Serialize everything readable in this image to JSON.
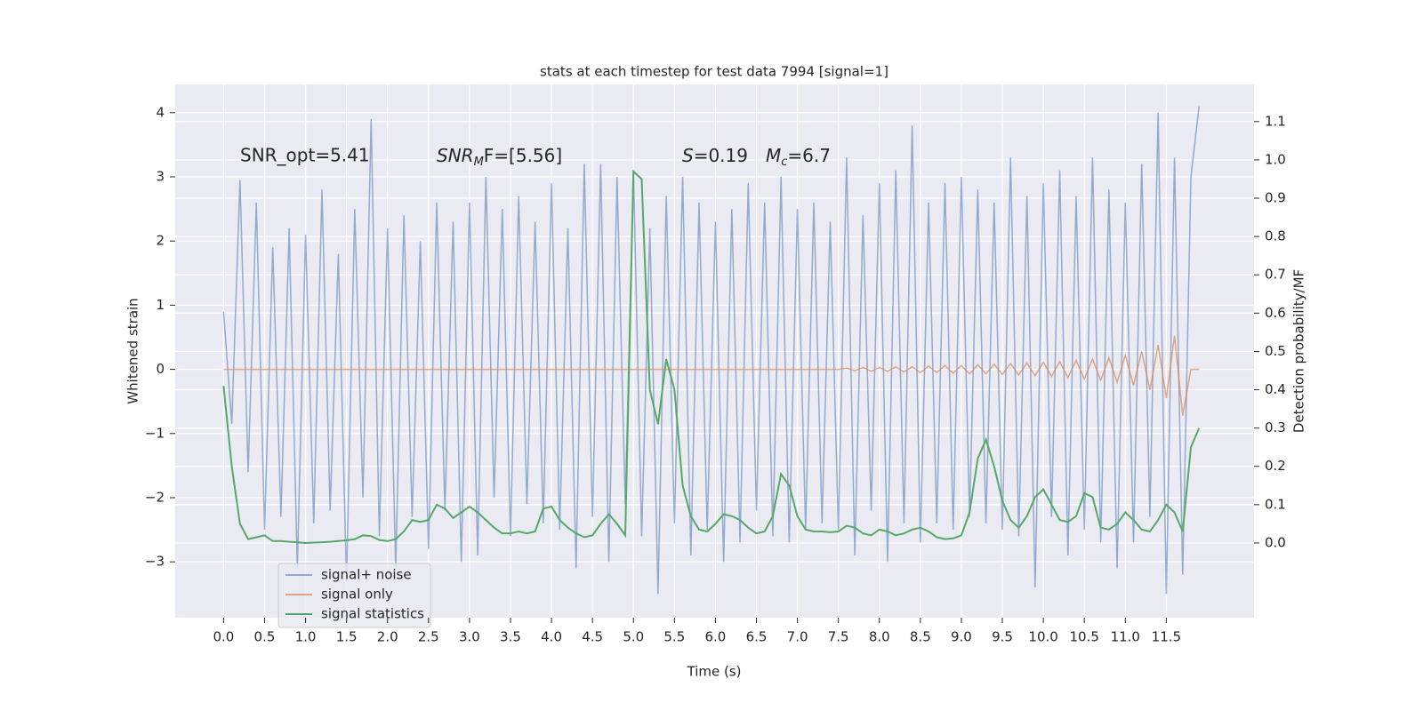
{
  "chart_data": {
    "type": "line",
    "title": "stats at each timestep for test data 7994 [signal=1]",
    "x_label": "Time (s)",
    "y_label": "Whitened strain",
    "y2_label": "Detection probability/MF",
    "annotations": {
      "snr_opt": "SNR_opt=5.41",
      "snr_mf": [
        "SNR",
        "M",
        "F=[5.56]"
      ],
      "stats": [
        "S",
        "=0.19",
        "M",
        "c",
        "=6.7"
      ]
    },
    "x": [
      0,
      0.1,
      0.2,
      0.3,
      0.4,
      0.5,
      0.6,
      0.7,
      0.8,
      0.9,
      1,
      1.1,
      1.2,
      1.3,
      1.4,
      1.5,
      1.6,
      1.7,
      1.8,
      1.9,
      2,
      2.1,
      2.2,
      2.3,
      2.4,
      2.5,
      2.6,
      2.7,
      2.8,
      2.9,
      3,
      3.1,
      3.2,
      3.3,
      3.4,
      3.5,
      3.6,
      3.7,
      3.8,
      3.9,
      4,
      4.1,
      4.2,
      4.3,
      4.4,
      4.5,
      4.6,
      4.7,
      4.8,
      4.9,
      5,
      5.1,
      5.2,
      5.3,
      5.4,
      5.5,
      5.6,
      5.7,
      5.8,
      5.9,
      6,
      6.1,
      6.2,
      6.3,
      6.4,
      6.5,
      6.6,
      6.7,
      6.8,
      6.9,
      7,
      7.1,
      7.2,
      7.3,
      7.4,
      7.5,
      7.6,
      7.7,
      7.8,
      7.9,
      8,
      8.1,
      8.2,
      8.3,
      8.4,
      8.5,
      8.6,
      8.7,
      8.8,
      8.9,
      9,
      9.1,
      9.2,
      9.3,
      9.4,
      9.5,
      9.6,
      9.7,
      9.8,
      9.9,
      10,
      10.1,
      10.2,
      10.3,
      10.4,
      10.5,
      10.6,
      10.7,
      10.8,
      10.9,
      11,
      11.1,
      11.2,
      11.3,
      11.4,
      11.5,
      11.6,
      11.7,
      11.8,
      11.9
    ],
    "series": [
      {
        "name": "signal+ noise",
        "color": "#4c72b0",
        "alpha": 0.55,
        "values": [
          0.9,
          -0.85,
          2.95,
          -1.6,
          2.6,
          -2.5,
          1.9,
          -2.3,
          2.2,
          -3.1,
          2.1,
          -2.4,
          2.8,
          -2.2,
          1.8,
          -3.3,
          2.5,
          -2.0,
          3.9,
          -2.6,
          2.2,
          -3.1,
          2.4,
          -2.3,
          2.0,
          -2.8,
          2.6,
          -2.2,
          2.3,
          -3.0,
          2.6,
          -2.9,
          3.0,
          -2.0,
          2.5,
          -2.6,
          2.7,
          -2.1,
          2.3,
          -2.4,
          2.9,
          -2.5,
          2.2,
          -3.1,
          3.2,
          -2.3,
          3.2,
          -3.0,
          3.0,
          -2.1,
          3.1,
          -2.6,
          2.2,
          -3.5,
          2.7,
          -2.4,
          3.0,
          -2.9,
          2.6,
          -2.5,
          2.3,
          -3.0,
          2.5,
          -2.7,
          2.9,
          -2.2,
          2.6,
          -2.6,
          3.0,
          -2.7,
          2.5,
          -2.5,
          2.6,
          -2.4,
          2.3,
          -2.5,
          3.3,
          -2.9,
          2.4,
          -2.2,
          2.9,
          -3.0,
          3.1,
          -2.4,
          3.8,
          -2.7,
          2.6,
          -2.4,
          2.9,
          -2.5,
          3.0,
          -2.3,
          2.8,
          -2.4,
          2.6,
          -2.5,
          3.3,
          -2.6,
          2.7,
          -3.4,
          2.9,
          -2.3,
          3.1,
          -2.9,
          2.7,
          -2.5,
          3.3,
          -2.7,
          2.8,
          -3.1,
          2.6,
          -2.7,
          3.2,
          -2.3,
          4.0,
          -3.5,
          3.3,
          -3.2,
          3.0,
          4.1
        ]
      },
      {
        "name": "signal only",
        "color": "#dd8452",
        "alpha": 0.7,
        "values": [
          0,
          0,
          0,
          0,
          0,
          0,
          0,
          0,
          0,
          0,
          0,
          0,
          0,
          0,
          0,
          0,
          0,
          0,
          0,
          0,
          0,
          0,
          0,
          0,
          0,
          0,
          0,
          0,
          0,
          0,
          0,
          0,
          0,
          0,
          0,
          0,
          0,
          0,
          0,
          0,
          0,
          0,
          0,
          0,
          0,
          0,
          0,
          0,
          0,
          0,
          0,
          0,
          0,
          0,
          0,
          0,
          0,
          0,
          0,
          0,
          0,
          0,
          0,
          0,
          0,
          0,
          0,
          0,
          0,
          0,
          0,
          0,
          0,
          0,
          0,
          0,
          0.02,
          -0.02,
          0.03,
          -0.03,
          0.03,
          -0.03,
          0.04,
          -0.04,
          0.04,
          -0.05,
          0.05,
          -0.05,
          0.06,
          -0.06,
          0.06,
          -0.07,
          0.07,
          -0.07,
          0.08,
          -0.08,
          0.09,
          -0.09,
          0.1,
          -0.1,
          0.11,
          -0.11,
          0.12,
          -0.13,
          0.14,
          -0.15,
          0.16,
          -0.17,
          0.18,
          -0.2,
          0.22,
          -0.25,
          0.28,
          -0.32,
          0.38,
          -0.45,
          0.52,
          -0.72,
          0,
          0
        ]
      },
      {
        "name": "signal statistics",
        "color": "#55a868",
        "alpha": 1,
        "axis": "y2",
        "values": [
          0.41,
          0.2,
          0.05,
          0.01,
          0.015,
          0.02,
          0.005,
          0.005,
          0.003,
          0.002,
          0,
          0.001,
          0.002,
          0.003,
          0.005,
          0.007,
          0.01,
          0.02,
          0.018,
          0.008,
          0.005,
          0.01,
          0.03,
          0.06,
          0.055,
          0.06,
          0.1,
          0.09,
          0.065,
          0.08,
          0.095,
          0.08,
          0.06,
          0.04,
          0.025,
          0.025,
          0.03,
          0.025,
          0.03,
          0.09,
          0.095,
          0.06,
          0.04,
          0.025,
          0.015,
          0.02,
          0.05,
          0.075,
          0.05,
          0.02,
          0.97,
          0.95,
          0.4,
          0.31,
          0.48,
          0.4,
          0.15,
          0.07,
          0.035,
          0.03,
          0.05,
          0.075,
          0.07,
          0.06,
          0.04,
          0.025,
          0.03,
          0.07,
          0.18,
          0.15,
          0.07,
          0.035,
          0.03,
          0.03,
          0.028,
          0.03,
          0.045,
          0.04,
          0.025,
          0.02,
          0.035,
          0.03,
          0.02,
          0.025,
          0.035,
          0.04,
          0.03,
          0.015,
          0.01,
          0.012,
          0.02,
          0.08,
          0.22,
          0.27,
          0.2,
          0.11,
          0.06,
          0.04,
          0.07,
          0.12,
          0.14,
          0.1,
          0.06,
          0.055,
          0.07,
          0.13,
          0.12,
          0.04,
          0.035,
          0.05,
          0.08,
          0.06,
          0.035,
          0.03,
          0.06,
          0.1,
          0.08,
          0.03,
          0.25,
          0.3
        ]
      }
    ],
    "xlim": [
      -0.59,
      12.57
    ],
    "ylim": [
      -3.87,
      4.44
    ],
    "y2lim": [
      -0.195,
      1.197
    ],
    "xticks": [
      {
        "value": 0,
        "label": "0.0"
      },
      0.5,
      {
        "value": 1,
        "label": "1.0"
      },
      1.5,
      {
        "value": 2,
        "label": "2.0"
      },
      2.5,
      {
        "value": 3,
        "label": "3.0"
      },
      3.5,
      {
        "value": 4,
        "label": "4.0"
      },
      4.5,
      {
        "value": 5,
        "label": "5.0"
      },
      5.5,
      {
        "value": 6,
        "label": "6.0"
      },
      6.5,
      {
        "value": 7,
        "label": "7.0"
      },
      7.5,
      {
        "value": 8,
        "label": "8.0"
      },
      8.5,
      {
        "value": 9,
        "label": "9.0"
      },
      9.5,
      {
        "value": 10,
        "label": "10.0"
      },
      10.5,
      {
        "value": 11,
        "label": "11.0"
      },
      11.5
    ],
    "yticks": [
      {
        "value": -3,
        "label": "−3"
      },
      {
        "value": -2,
        "label": "−2"
      },
      {
        "value": -1,
        "label": "−1"
      },
      0,
      1,
      2,
      3,
      4
    ],
    "y2ticks": [
      {
        "value": 0,
        "label": "0.0"
      },
      0.1,
      0.2,
      0.3,
      0.4,
      0.5,
      0.6,
      0.7,
      0.8,
      0.9,
      {
        "value": 1,
        "label": "1.0"
      },
      1.1
    ],
    "grid": true,
    "legend_loc": "lower left"
  }
}
